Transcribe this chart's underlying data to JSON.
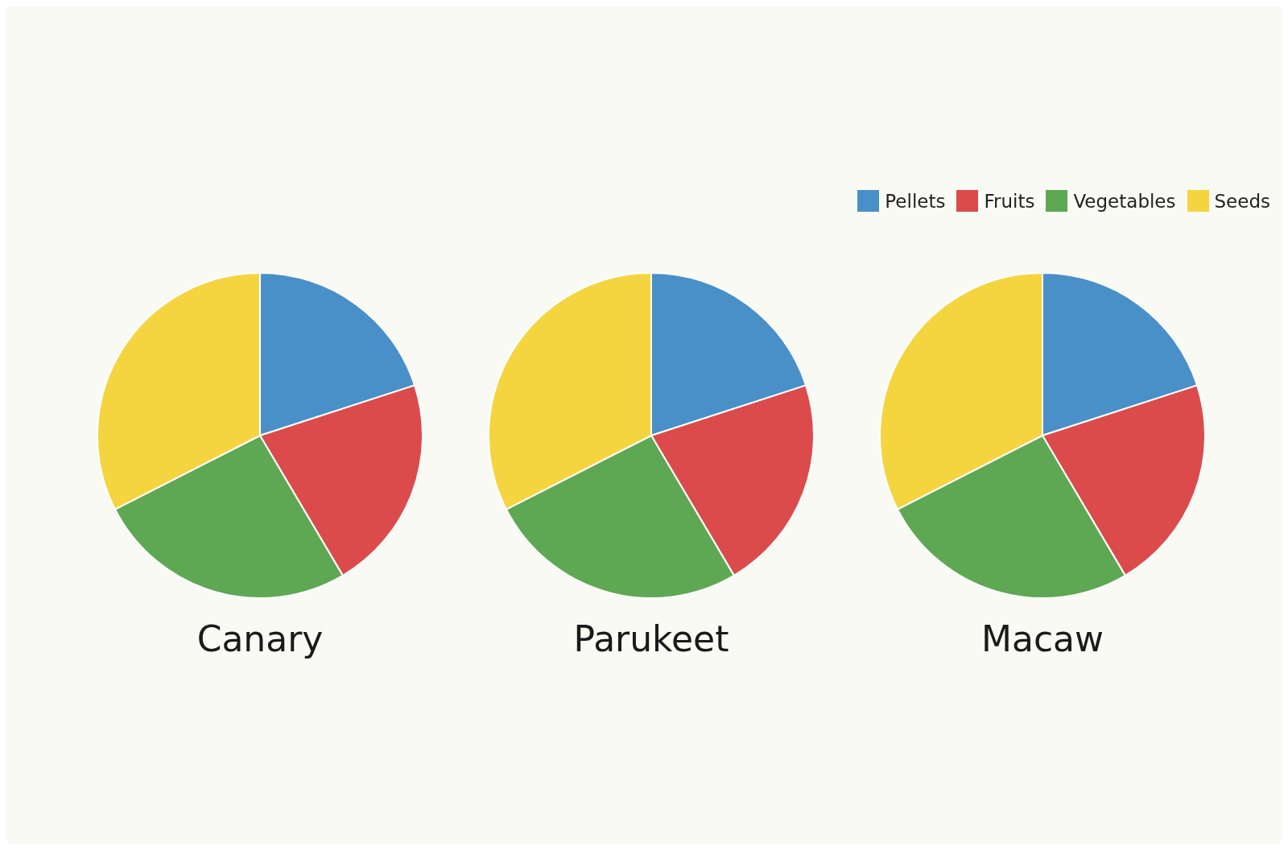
{
  "chart_data": [
    {
      "type": "pie",
      "title": "Canary",
      "categories": [
        null,
        null,
        null,
        null
      ],
      "values": [
        20,
        21.5,
        26,
        32.5
      ],
      "colors": [
        "#4a90c8",
        "#dc4b4b",
        "#5ea854",
        "#f5d53f"
      ]
    },
    {
      "type": "pie",
      "title": "Parukeet",
      "categories": [
        null,
        null,
        null,
        null
      ],
      "values": [
        20,
        21.5,
        26,
        32.5
      ],
      "colors": [
        "#4a90c8",
        "#dc4b4b",
        "#5ea854",
        "#f5d53f"
      ]
    },
    {
      "type": "pie",
      "title": "Macaw",
      "categories": [
        "Pellets",
        "Fruits",
        "Vegetables",
        "Seeds"
      ],
      "values": [
        20,
        21.5,
        26,
        32.5
      ],
      "colors": [
        "#4a90c8",
        "#dc4b4b",
        "#5ea854",
        "#f5d53f"
      ],
      "legend": "top right"
    }
  ]
}
